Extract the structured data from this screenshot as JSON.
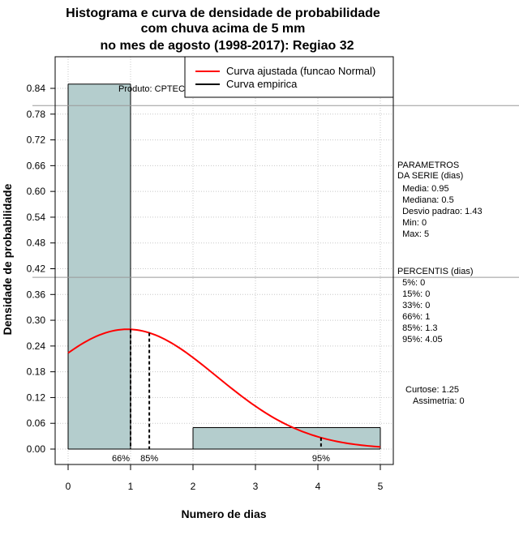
{
  "chart_data": {
    "type": "bar",
    "title": [
      "Histograma e curva de densidade de probabilidade",
      "com chuva acima de 5 mm",
      "no mes de agosto (1998-2017): Regiao 32"
    ],
    "xlabel": "Numero de dias",
    "ylabel": "Densidade de probabilidade",
    "xlim": [
      0,
      5
    ],
    "ylim": [
      0,
      0.84
    ],
    "x_ticks": [
      0,
      1,
      2,
      3,
      4,
      5
    ],
    "y_ticks": [
      0.0,
      0.06,
      0.12,
      0.18,
      0.24,
      0.3,
      0.36,
      0.42,
      0.48,
      0.54,
      0.6,
      0.66,
      0.72,
      0.78,
      0.84
    ],
    "y_tick_labels": [
      "0.00",
      "0.06",
      "0.12",
      "0.18",
      "0.24",
      "0.30",
      "0.36",
      "0.42",
      "0.48",
      "0.54",
      "0.60",
      "0.66",
      "0.72",
      "0.78",
      "0.84"
    ],
    "bins": [
      {
        "start": 0,
        "end": 1,
        "density": 0.85
      },
      {
        "start": 1,
        "end": 2,
        "density": 0.0
      },
      {
        "start": 2,
        "end": 3,
        "density": 0.05
      },
      {
        "start": 3,
        "end": 4,
        "density": 0.05
      },
      {
        "start": 4,
        "end": 5,
        "density": 0.05
      }
    ],
    "normal_curve": {
      "mean": 0.95,
      "sd": 1.43,
      "x_from": 0,
      "x_to": 5
    },
    "percentile_markers": [
      {
        "label": "66%",
        "x": 1.0
      },
      {
        "label": "85%",
        "x": 1.3
      },
      {
        "label": "95%",
        "x": 4.05
      }
    ],
    "reference_lines": [
      0.4,
      0.8
    ],
    "legend": [
      {
        "label": "Curva ajustada (funcao Normal)",
        "color": "#ff0000"
      },
      {
        "label": "Curva empirica",
        "color": "#000000"
      }
    ],
    "product_label": "Produto: CPTEC/INPE",
    "bar_color": "#b4cdcd",
    "curve_color": "#ff0000"
  },
  "sidebar": {
    "parametros_lines": [
      "PARAMETROS",
      "DA SERIE (dias)",
      "  Media: 0.95",
      "  Mediana: 0.5",
      "  Desvio padrao: 1.43",
      "  Min: 0",
      "  Max: 5"
    ],
    "percentis_lines": [
      "PERCENTIS (dias)",
      "  5%: 0",
      "  15%: 0",
      "  33%: 0",
      "  66%: 1",
      "  85%: 1.3",
      "  95%: 4.05"
    ],
    "curtose": "Curtose: 1.25",
    "assimetria": "Assimetria: 0"
  }
}
